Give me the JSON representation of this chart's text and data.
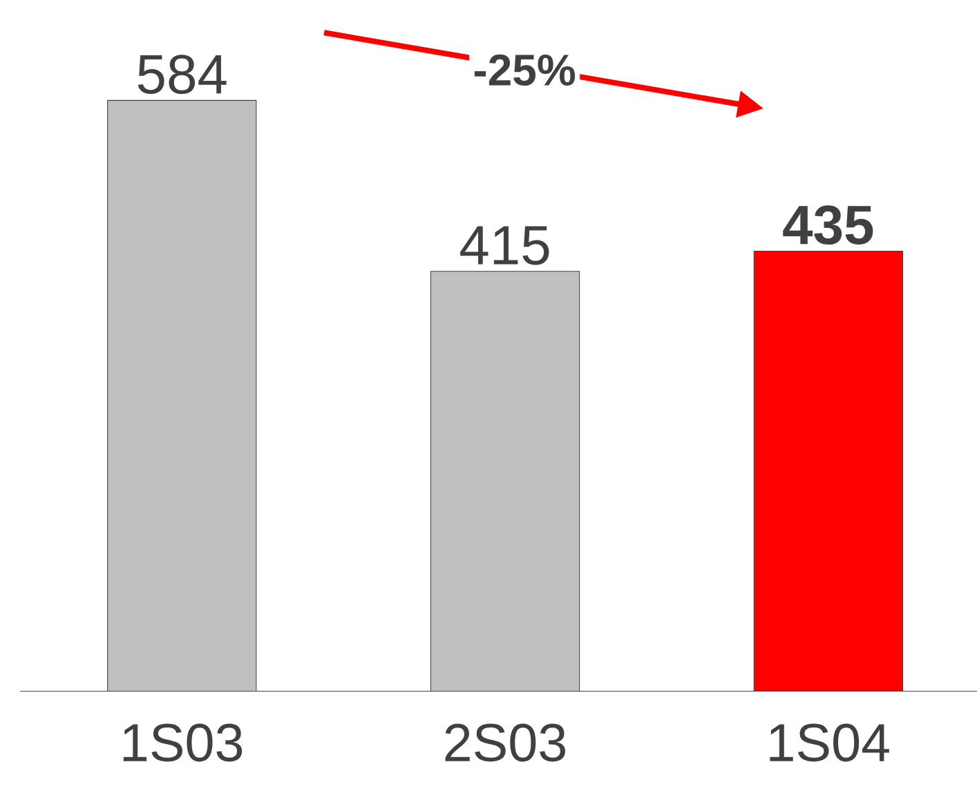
{
  "chart_data": {
    "type": "bar",
    "categories": [
      "1S03",
      "2S03",
      "1S04"
    ],
    "values": [
      584,
      415,
      435
    ],
    "colors": [
      "#c0c0c0",
      "#c0c0c0",
      "#ff0000"
    ],
    "value_labels": [
      "584",
      "415",
      "**435**"
    ],
    "tick_labels": "x",
    "annotations": [
      "-25%"
    ]
  }
}
